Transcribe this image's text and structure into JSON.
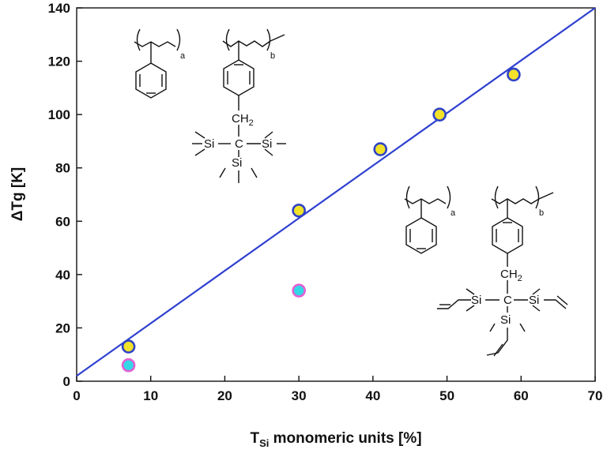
{
  "chart_data": {
    "type": "scatter",
    "title": "",
    "xlabel_main": "T",
    "xlabel_sub": "Si",
    "xlabel_rest": " monomeric units [%]",
    "ylabel": "ΔTg [K]",
    "xlim": [
      0,
      70
    ],
    "ylim": [
      0,
      140
    ],
    "xticks": [
      0,
      10,
      20,
      30,
      40,
      50,
      60,
      70
    ],
    "yticks": [
      0,
      20,
      40,
      60,
      80,
      100,
      120,
      140
    ],
    "grid": false,
    "series": [
      {
        "marker": "circle",
        "fill_color": "#f2e22a",
        "edge_color": "#2e43c6",
        "points": [
          {
            "x": 7,
            "y": 13
          },
          {
            "x": 30,
            "y": 64
          },
          {
            "x": 41,
            "y": 87
          },
          {
            "x": 49,
            "y": 100
          },
          {
            "x": 59,
            "y": 115
          }
        ]
      },
      {
        "marker": "circle",
        "fill_color": "#35d6e6",
        "edge_color": "#e35fd3",
        "points": [
          {
            "x": 7,
            "y": 6
          },
          {
            "x": 30,
            "y": 34
          }
        ]
      }
    ],
    "fit_line": {
      "color": "#2e3fd0",
      "x": [
        0,
        70
      ],
      "y": [
        2,
        140.5
      ]
    },
    "structures": {
      "top": {
        "a": "a",
        "b": "b",
        "ch2": "CH",
        "ch2_sub": "2",
        "si_left": "Si",
        "c": "C",
        "si_right": "Si",
        "si_bottom": "Si"
      },
      "bottom": {
        "a": "a",
        "b": "b",
        "ch2": "CH",
        "ch2_sub": "2",
        "si_left": "Si",
        "c": "C",
        "si_right": "Si",
        "si_bottom": "Si"
      }
    }
  }
}
